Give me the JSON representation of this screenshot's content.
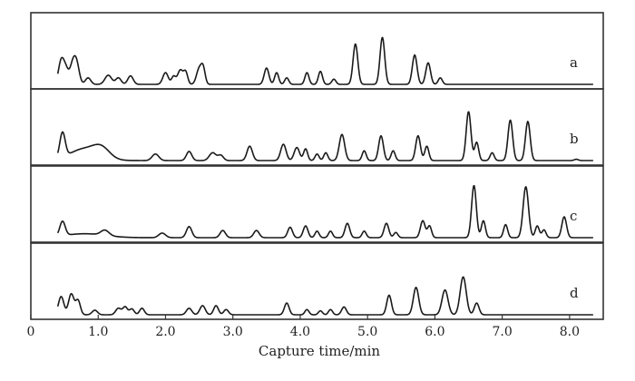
{
  "chart_data": {
    "type": "line",
    "xlabel": "Capture time/min",
    "ylabel": "",
    "xlim": [
      0,
      8.5
    ],
    "x_ticks": [
      "0",
      "1.0",
      "2.0",
      "3.0",
      "4.0",
      "5.0",
      "6.0",
      "7.0",
      "8.0"
    ],
    "x_tick_values": [
      0,
      1,
      2,
      3,
      4,
      5,
      6,
      7,
      8
    ],
    "grid": false,
    "panels": [
      {
        "label": "a",
        "peaks": [
          [
            0.45,
            0.35,
            0.04
          ],
          [
            0.52,
            0.22,
            0.04
          ],
          [
            0.62,
            0.28,
            0.04
          ],
          [
            0.68,
            0.3,
            0.04
          ],
          [
            0.85,
            0.1,
            0.04
          ],
          [
            1.15,
            0.14,
            0.05
          ],
          [
            1.3,
            0.1,
            0.04
          ],
          [
            1.48,
            0.13,
            0.04
          ],
          [
            2.0,
            0.18,
            0.04
          ],
          [
            2.12,
            0.12,
            0.03
          ],
          [
            2.22,
            0.22,
            0.04
          ],
          [
            2.3,
            0.18,
            0.03
          ],
          [
            2.5,
            0.24,
            0.04
          ],
          [
            2.56,
            0.22,
            0.03
          ],
          [
            3.5,
            0.25,
            0.035
          ],
          [
            3.65,
            0.18,
            0.03
          ],
          [
            3.8,
            0.1,
            0.03
          ],
          [
            4.1,
            0.18,
            0.03
          ],
          [
            4.3,
            0.2,
            0.03
          ],
          [
            4.5,
            0.08,
            0.03
          ],
          [
            4.82,
            0.62,
            0.035
          ],
          [
            5.22,
            0.72,
            0.035
          ],
          [
            5.7,
            0.45,
            0.035
          ],
          [
            5.9,
            0.33,
            0.035
          ],
          [
            6.08,
            0.1,
            0.03
          ]
        ]
      },
      {
        "label": "b",
        "peaks": [
          [
            0.47,
            0.38,
            0.04
          ],
          [
            0.8,
            0.18,
            0.22
          ],
          [
            1.05,
            0.14,
            0.12
          ],
          [
            1.85,
            0.1,
            0.05
          ],
          [
            2.35,
            0.14,
            0.04
          ],
          [
            2.7,
            0.12,
            0.05
          ],
          [
            2.82,
            0.08,
            0.04
          ],
          [
            3.25,
            0.22,
            0.04
          ],
          [
            3.75,
            0.25,
            0.04
          ],
          [
            3.95,
            0.2,
            0.04
          ],
          [
            4.08,
            0.18,
            0.03
          ],
          [
            4.25,
            0.1,
            0.03
          ],
          [
            4.38,
            0.12,
            0.03
          ],
          [
            4.62,
            0.4,
            0.04
          ],
          [
            4.95,
            0.15,
            0.03
          ],
          [
            5.2,
            0.38,
            0.035
          ],
          [
            5.38,
            0.15,
            0.03
          ],
          [
            5.75,
            0.38,
            0.035
          ],
          [
            5.88,
            0.22,
            0.03
          ],
          [
            6.5,
            0.75,
            0.035
          ],
          [
            6.62,
            0.28,
            0.03
          ],
          [
            6.85,
            0.12,
            0.03
          ],
          [
            7.12,
            0.62,
            0.035
          ],
          [
            7.38,
            0.6,
            0.035
          ],
          [
            8.1,
            0.02,
            0.03
          ]
        ]
      },
      {
        "label": "c",
        "peaks": [
          [
            0.47,
            0.22,
            0.04
          ],
          [
            0.8,
            0.06,
            0.3
          ],
          [
            1.1,
            0.08,
            0.06
          ],
          [
            1.95,
            0.07,
            0.05
          ],
          [
            2.35,
            0.17,
            0.04
          ],
          [
            2.85,
            0.11,
            0.04
          ],
          [
            3.35,
            0.11,
            0.04
          ],
          [
            3.85,
            0.16,
            0.035
          ],
          [
            4.08,
            0.18,
            0.035
          ],
          [
            4.25,
            0.1,
            0.03
          ],
          [
            4.45,
            0.1,
            0.03
          ],
          [
            4.7,
            0.22,
            0.035
          ],
          [
            4.95,
            0.1,
            0.03
          ],
          [
            5.28,
            0.22,
            0.035
          ],
          [
            5.42,
            0.08,
            0.03
          ],
          [
            5.82,
            0.26,
            0.035
          ],
          [
            5.92,
            0.18,
            0.03
          ],
          [
            6.58,
            0.8,
            0.035
          ],
          [
            6.72,
            0.26,
            0.03
          ],
          [
            7.05,
            0.2,
            0.03
          ],
          [
            7.35,
            0.78,
            0.04
          ],
          [
            7.52,
            0.18,
            0.03
          ],
          [
            7.62,
            0.12,
            0.03
          ],
          [
            7.92,
            0.32,
            0.035
          ]
        ]
      },
      {
        "label": "d",
        "peaks": [
          [
            0.45,
            0.28,
            0.04
          ],
          [
            0.6,
            0.32,
            0.04
          ],
          [
            0.7,
            0.22,
            0.035
          ],
          [
            0.95,
            0.07,
            0.04
          ],
          [
            1.3,
            0.1,
            0.04
          ],
          [
            1.4,
            0.12,
            0.035
          ],
          [
            1.5,
            0.09,
            0.035
          ],
          [
            1.65,
            0.1,
            0.035
          ],
          [
            2.35,
            0.1,
            0.04
          ],
          [
            2.55,
            0.14,
            0.04
          ],
          [
            2.75,
            0.14,
            0.035
          ],
          [
            2.9,
            0.08,
            0.035
          ],
          [
            3.8,
            0.18,
            0.035
          ],
          [
            4.1,
            0.08,
            0.03
          ],
          [
            4.3,
            0.06,
            0.03
          ],
          [
            4.45,
            0.08,
            0.03
          ],
          [
            4.65,
            0.12,
            0.035
          ],
          [
            5.32,
            0.3,
            0.035
          ],
          [
            5.72,
            0.42,
            0.04
          ],
          [
            6.15,
            0.38,
            0.045
          ],
          [
            6.42,
            0.58,
            0.045
          ],
          [
            6.62,
            0.18,
            0.035
          ]
        ]
      }
    ]
  }
}
